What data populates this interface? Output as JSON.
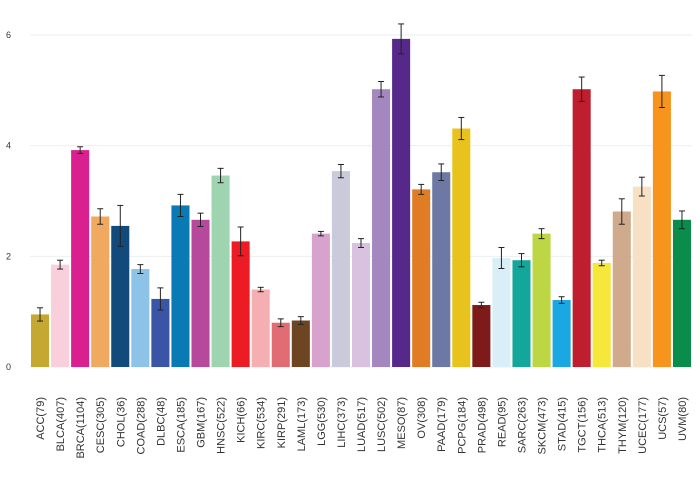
{
  "chart_data": {
    "type": "bar",
    "title": "",
    "xlabel": "",
    "ylabel": "",
    "ylim": [
      0,
      6.2
    ],
    "yticks": [
      0,
      2,
      4,
      6
    ],
    "grid": "horizontal",
    "legend": "none",
    "error_bars": true,
    "categories": [
      "ACC(79)",
      "BLCA(407)",
      "BRCA(1104)",
      "CESC(305)",
      "CHOL(36)",
      "COAD(288)",
      "DLBC(48)",
      "ESCA(185)",
      "GBM(167)",
      "HNSC(522)",
      "KICH(66)",
      "KIRC(534)",
      "KIRP(291)",
      "LAML(173)",
      "LGG(530)",
      "LIHC(373)",
      "LUAD(517)",
      "LUSC(502)",
      "MESO(87)",
      "OV(308)",
      "PAAD(179)",
      "PCPG(184)",
      "PRAD(498)",
      "READ(95)",
      "SARC(263)",
      "SKCM(473)",
      "STAD(415)",
      "TGCT(156)",
      "THCA(513)",
      "THYM(120)",
      "UCEC(177)",
      "UCS(57)",
      "UVM(80)"
    ],
    "values": [
      0.95,
      1.85,
      3.92,
      2.72,
      2.55,
      1.77,
      1.23,
      2.92,
      2.66,
      3.46,
      2.27,
      1.4,
      0.8,
      0.84,
      2.41,
      3.54,
      2.24,
      5.02,
      5.93,
      3.21,
      3.52,
      4.31,
      1.12,
      1.97,
      1.93,
      2.41,
      1.21,
      5.02,
      1.88,
      2.81,
      3.26,
      4.98,
      2.66
    ],
    "errors": [
      0.12,
      0.08,
      0.06,
      0.14,
      0.37,
      0.08,
      0.2,
      0.2,
      0.12,
      0.13,
      0.26,
      0.04,
      0.07,
      0.07,
      0.04,
      0.12,
      0.08,
      0.14,
      0.27,
      0.09,
      0.15,
      0.2,
      0.05,
      0.19,
      0.12,
      0.09,
      0.06,
      0.22,
      0.05,
      0.23,
      0.17,
      0.29,
      0.16
    ],
    "colors": [
      "#C4A832",
      "#F8CFDB",
      "#D9208E",
      "#F1A95F",
      "#124A7C",
      "#8EC3E8",
      "#3A55A5",
      "#0A7AB4",
      "#B7499D",
      "#9ED4AF",
      "#ED1C24",
      "#F5AEB2",
      "#E16C73",
      "#6E4522",
      "#D7A3CC",
      "#CACBDA",
      "#D8C2E0",
      "#A487BF",
      "#56288A",
      "#E07C24",
      "#6D79A4",
      "#E8C31E",
      "#7E1A1A",
      "#DAEEF8",
      "#14A69A",
      "#BCD644",
      "#1BA7E2",
      "#BF1E2E",
      "#F5E83B",
      "#CFAA8C",
      "#F7E0C3",
      "#F7941D",
      "#0A8D4A"
    ]
  }
}
